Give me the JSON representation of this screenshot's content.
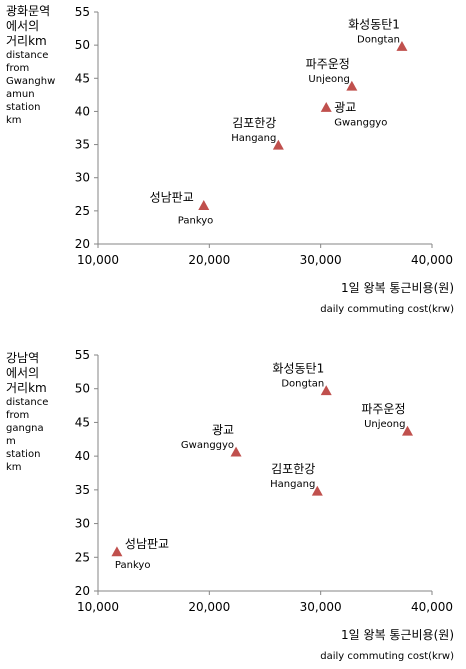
{
  "chart_data": [
    {
      "type": "scatter",
      "ylabel_lines": [
        "광화문역",
        "에서의",
        "거리km"
      ],
      "ylabel_en_lines": [
        "distance",
        "from",
        "Gwanghw",
        "amun",
        "station",
        "km"
      ],
      "xlabel": "1일 왕복 통근비용(원)",
      "xlabel_en": "daily commuting cost(krw)",
      "xlim": [
        10000,
        40000
      ],
      "ylim": [
        20,
        55
      ],
      "x_ticks": [
        "10,000",
        "20,000",
        "30,000",
        "40,000"
      ],
      "y_ticks": [
        "20",
        "25",
        "30",
        "35",
        "40",
        "45",
        "50",
        "55"
      ],
      "marker_color": "#c0504d",
      "grid": false,
      "points": [
        {
          "label": "화성동탄1",
          "label_en": "Dongtan",
          "x": 37300,
          "y": 49.8
        },
        {
          "label": "파주운정",
          "label_en": "Unjeong",
          "x": 32800,
          "y": 43.8
        },
        {
          "label": "광교",
          "label_en": "Gwanggyo",
          "x": 30500,
          "y": 40.6
        },
        {
          "label": "김포한강",
          "label_en": "Hangang",
          "x": 26200,
          "y": 34.9
        },
        {
          "label": "성남판교",
          "label_en": "Pankyo",
          "x": 19500,
          "y": 25.8
        }
      ]
    },
    {
      "type": "scatter",
      "ylabel_lines": [
        "강남역",
        "에서의",
        "거리km"
      ],
      "ylabel_en_lines": [
        "distance",
        "from",
        "gangna",
        "m",
        "station",
        "km"
      ],
      "xlabel": "1일 왕복 통근비용(원)",
      "xlabel_en": "daily commuting cost(krw)",
      "xlim": [
        10000,
        40000
      ],
      "ylim": [
        20,
        55
      ],
      "x_ticks": [
        "10,000",
        "20,000",
        "30,000",
        "40,000"
      ],
      "y_ticks": [
        "20",
        "25",
        "30",
        "35",
        "40",
        "45",
        "50",
        "55"
      ],
      "marker_color": "#c0504d",
      "grid": false,
      "points": [
        {
          "label": "화성동탄1",
          "label_en": "Dongtan",
          "x": 30500,
          "y": 49.7
        },
        {
          "label": "파주운정",
          "label_en": "Unjeong",
          "x": 37800,
          "y": 43.7
        },
        {
          "label": "광교",
          "label_en": "Gwanggyo",
          "x": 22400,
          "y": 40.6
        },
        {
          "label": "김포한강",
          "label_en": "Hangang",
          "x": 29700,
          "y": 34.8
        },
        {
          "label": "성남판교",
          "label_en": "Pankyo",
          "x": 11700,
          "y": 25.8
        }
      ]
    }
  ]
}
